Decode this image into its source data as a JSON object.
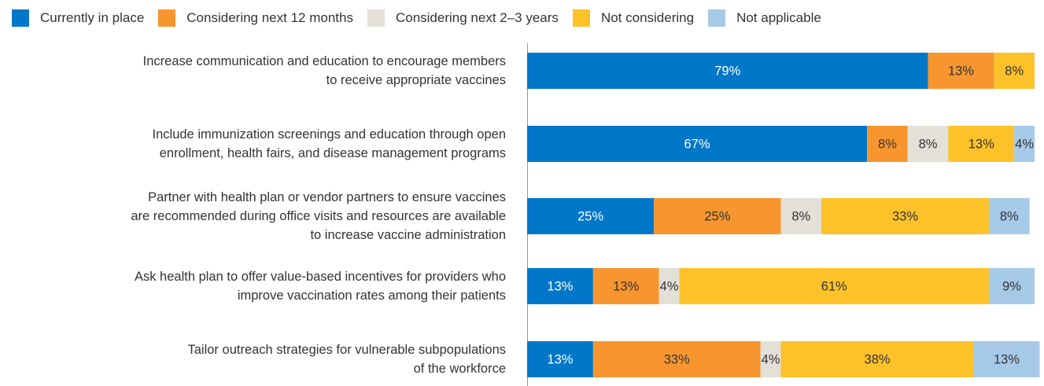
{
  "chart_data": {
    "type": "stacked-barh",
    "categories": [
      "Increase communication and education to encourage members\nto receive appropriate vaccines",
      "Include immunization screenings and education through open\nenrollment, health fairs, and disease management programs",
      "Partner with health plan or vendor partners to ensure vaccines\nare recommended during office visits and resources are available\nto increase vaccine administration",
      "Ask health plan to offer value-based incentives for providers who\nimprove vaccination rates among their patients",
      "Tailor outreach strategies for vulnerable subpopulations\nof the workforce"
    ],
    "series": [
      {
        "name": "Currently in place",
        "color": "#0077c8",
        "values": [
          79,
          67,
          25,
          13,
          13
        ],
        "value_labels": [
          "79%",
          "67%",
          "25%",
          "13%",
          "13%"
        ]
      },
      {
        "name": "Considering next 12 months",
        "color": "#f7962f",
        "values": [
          13,
          8,
          25,
          13,
          33
        ],
        "value_labels": [
          "13%",
          "8%",
          "25%",
          "13%",
          "33%"
        ]
      },
      {
        "name": "Considering next 2–3 years",
        "color": "#e3e0d8",
        "values": [
          null,
          8,
          8,
          4,
          4
        ],
        "value_labels": [
          null,
          "8%",
          "8%",
          "4%",
          "4%"
        ]
      },
      {
        "name": "Not considering",
        "color": "#fdc22a",
        "values": [
          8,
          13,
          33,
          61,
          38
        ],
        "value_labels": [
          "8%",
          "13%",
          "33%",
          "61%",
          "38%"
        ]
      },
      {
        "name": "Not applicable",
        "color": "#a7c9e8",
        "values": [
          null,
          4,
          8,
          9,
          13
        ],
        "value_labels": [
          null,
          "4%",
          "8%",
          "9%",
          "13%"
        ]
      }
    ],
    "xlim": [
      0,
      100
    ]
  }
}
